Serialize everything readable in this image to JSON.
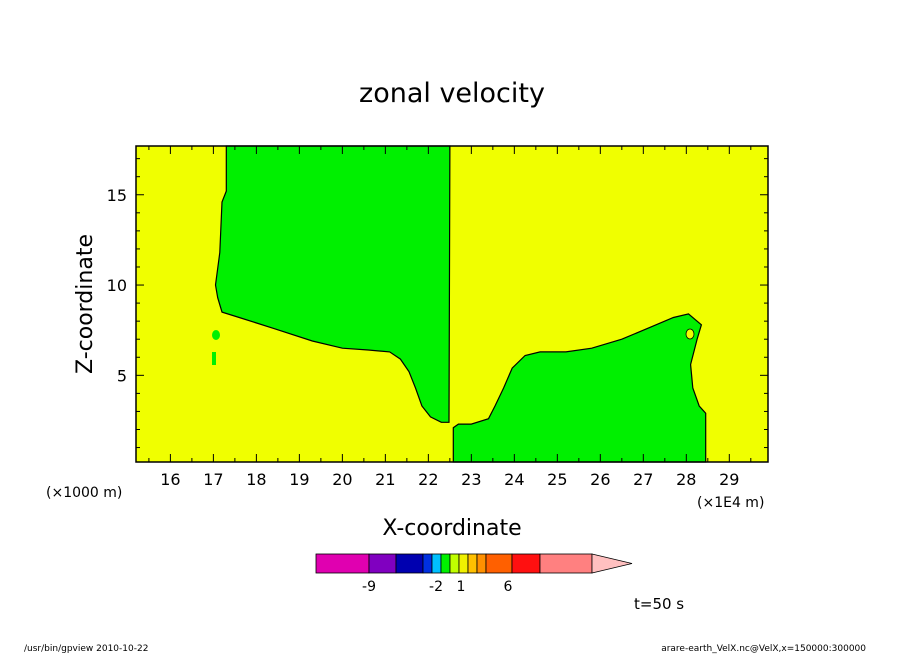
{
  "chart_data": {
    "type": "heatmap",
    "title": "zonal velocity",
    "xlabel": "X-coordinate",
    "ylabel": "Z-coordinate",
    "x_unit_left": "(×1000 m)",
    "x_unit_right": "(×1E4 m)",
    "time_label": "t=50 s",
    "xlim": [
      15.2,
      29.9
    ],
    "ylim": [
      0.2,
      17.7
    ],
    "x_ticks": [
      "16",
      "17",
      "18",
      "19",
      "20",
      "21",
      "22",
      "23",
      "24",
      "25",
      "26",
      "27",
      "28",
      "29"
    ],
    "y_ticks": [
      "5",
      "10",
      "15"
    ],
    "grid": false,
    "fill_colors": {
      "background": "#f0ff00",
      "region": "#00f000"
    },
    "regions": [
      {
        "name": "left-green-region",
        "points": [
          [
            17.3,
            17.7
          ],
          [
            17.3,
            15.2
          ],
          [
            17.2,
            14.6
          ],
          [
            17.15,
            11.8
          ],
          [
            17.05,
            10.0
          ],
          [
            17.1,
            9.3
          ],
          [
            17.2,
            8.5
          ],
          [
            17.6,
            8.2
          ],
          [
            18.4,
            7.6
          ],
          [
            19.3,
            6.9
          ],
          [
            20.0,
            6.5
          ],
          [
            20.6,
            6.4
          ],
          [
            21.1,
            6.3
          ],
          [
            21.35,
            5.9
          ],
          [
            21.55,
            5.2
          ],
          [
            21.7,
            4.3
          ],
          [
            21.85,
            3.3
          ],
          [
            22.05,
            2.7
          ],
          [
            22.3,
            2.4
          ],
          [
            22.48,
            2.4
          ],
          [
            22.5,
            17.7
          ]
        ]
      },
      {
        "name": "right-green-region",
        "points": [
          [
            22.58,
            0.2
          ],
          [
            22.58,
            2.1
          ],
          [
            22.7,
            2.3
          ],
          [
            23.0,
            2.3
          ],
          [
            23.4,
            2.6
          ],
          [
            23.55,
            3.3
          ],
          [
            23.75,
            4.3
          ],
          [
            23.95,
            5.4
          ],
          [
            24.25,
            6.1
          ],
          [
            24.6,
            6.3
          ],
          [
            25.2,
            6.3
          ],
          [
            25.8,
            6.5
          ],
          [
            26.5,
            7.0
          ],
          [
            27.2,
            7.7
          ],
          [
            27.7,
            8.2
          ],
          [
            28.05,
            8.4
          ],
          [
            28.35,
            7.8
          ],
          [
            28.25,
            7.0
          ],
          [
            28.1,
            5.6
          ],
          [
            28.15,
            4.3
          ],
          [
            28.3,
            3.3
          ],
          [
            28.45,
            2.9
          ],
          [
            28.45,
            0.2
          ]
        ]
      }
    ],
    "colorbar": {
      "colors": [
        "#e000b0",
        "#8000c0",
        "#0000b0",
        "#0030e0",
        "#00c0ff",
        "#00f000",
        "#c0ff00",
        "#f0f000",
        "#ffc000",
        "#ff9000",
        "#ff6000",
        "#ff1010",
        "#ff8080",
        "#ffc0c0"
      ],
      "labels": [
        "-9",
        "-2",
        "1",
        "6"
      ]
    }
  },
  "footer": {
    "left": "/usr/bin/gpview   2010-10-22",
    "right": "arare-earth_VelX.nc@VelX,x=150000:300000"
  }
}
